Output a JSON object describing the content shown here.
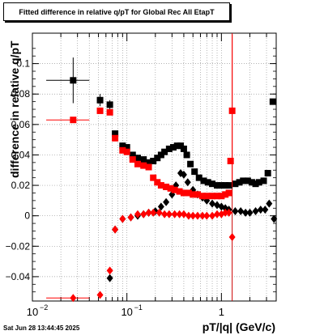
{
  "chart_data": {
    "type": "scatter",
    "title": "Fitted difference in relative q/pT for Global Rec All EtapT",
    "xlabel": "pT/|q| (GeV/c)",
    "ylabel": "difference in relative q/pT",
    "xscale": "log",
    "xlim": [
      0.01,
      3.8
    ],
    "ylim": [
      -0.056,
      0.12
    ],
    "x_ticks": [
      0.01,
      0.1,
      1
    ],
    "x_tick_labels": [
      "10",
      "10",
      "1"
    ],
    "x_tick_exponents": [
      "−2",
      "−1",
      ""
    ],
    "y_ticks": [
      -0.04,
      -0.02,
      0,
      0.02,
      0.04,
      0.06,
      0.08,
      0.1
    ],
    "y_tick_labels": [
      "−0.04",
      "−0.02",
      "0",
      "0.02",
      "0.04",
      "0.06",
      "0.08",
      "0.1"
    ],
    "grid": true,
    "vertical_line_x": 1.3,
    "series": [
      {
        "color": "#000000",
        "marker": "square",
        "points": [
          {
            "x": 0.027,
            "y": 0.089,
            "xerr": 0.013,
            "yerr": 0.015
          },
          {
            "x": 0.052,
            "y": 0.076,
            "xerr": 0.004,
            "yerr": 0.004
          },
          {
            "x": 0.066,
            "y": 0.073,
            "xerr": 0.003,
            "yerr": 0.003
          },
          {
            "x": 0.075,
            "y": 0.054
          },
          {
            "x": 0.09,
            "y": 0.046
          },
          {
            "x": 0.1,
            "y": 0.045
          },
          {
            "x": 0.115,
            "y": 0.04
          },
          {
            "x": 0.13,
            "y": 0.038
          },
          {
            "x": 0.15,
            "y": 0.037
          },
          {
            "x": 0.17,
            "y": 0.035
          },
          {
            "x": 0.19,
            "y": 0.036
          },
          {
            "x": 0.21,
            "y": 0.038
          },
          {
            "x": 0.23,
            "y": 0.04
          },
          {
            "x": 0.25,
            "y": 0.042
          },
          {
            "x": 0.28,
            "y": 0.044
          },
          {
            "x": 0.31,
            "y": 0.045
          },
          {
            "x": 0.34,
            "y": 0.046
          },
          {
            "x": 0.37,
            "y": 0.046
          },
          {
            "x": 0.4,
            "y": 0.044
          },
          {
            "x": 0.43,
            "y": 0.04
          },
          {
            "x": 0.47,
            "y": 0.034
          },
          {
            "x": 0.52,
            "y": 0.029
          },
          {
            "x": 0.58,
            "y": 0.025
          },
          {
            "x": 0.65,
            "y": 0.023
          },
          {
            "x": 0.72,
            "y": 0.022
          },
          {
            "x": 0.8,
            "y": 0.021
          },
          {
            "x": 0.9,
            "y": 0.02
          },
          {
            "x": 1.0,
            "y": 0.02
          },
          {
            "x": 1.1,
            "y": 0.02
          },
          {
            "x": 1.2,
            "y": 0.02
          },
          {
            "x": 1.4,
            "y": 0.021
          },
          {
            "x": 1.55,
            "y": 0.022
          },
          {
            "x": 1.7,
            "y": 0.023
          },
          {
            "x": 1.9,
            "y": 0.023
          },
          {
            "x": 2.1,
            "y": 0.022
          },
          {
            "x": 2.3,
            "y": 0.021
          },
          {
            "x": 2.5,
            "y": 0.022
          },
          {
            "x": 2.8,
            "y": 0.023
          },
          {
            "x": 3.1,
            "y": 0.028
          },
          {
            "x": 3.5,
            "y": 0.075
          }
        ]
      },
      {
        "color": "#000000",
        "marker": "diamond",
        "points": [
          {
            "x": 0.066,
            "y": -0.041
          },
          {
            "x": 0.075,
            "y": -0.009
          },
          {
            "x": 0.09,
            "y": -0.002
          },
          {
            "x": 0.11,
            "y": -0.001
          },
          {
            "x": 0.13,
            "y": 0.0
          },
          {
            "x": 0.15,
            "y": 0.001
          },
          {
            "x": 0.17,
            "y": 0.002
          },
          {
            "x": 0.2,
            "y": 0.003
          },
          {
            "x": 0.23,
            "y": 0.006
          },
          {
            "x": 0.26,
            "y": 0.009
          },
          {
            "x": 0.3,
            "y": 0.014
          },
          {
            "x": 0.33,
            "y": 0.02
          },
          {
            "x": 0.37,
            "y": 0.028
          },
          {
            "x": 0.4,
            "y": 0.027
          },
          {
            "x": 0.44,
            "y": 0.022
          },
          {
            "x": 0.5,
            "y": 0.017
          },
          {
            "x": 0.56,
            "y": 0.014
          },
          {
            "x": 0.63,
            "y": 0.012
          },
          {
            "x": 0.7,
            "y": 0.01
          },
          {
            "x": 0.8,
            "y": 0.008
          },
          {
            "x": 0.9,
            "y": 0.007
          },
          {
            "x": 1.0,
            "y": 0.006
          },
          {
            "x": 1.1,
            "y": 0.005
          },
          {
            "x": 1.2,
            "y": 0.004
          },
          {
            "x": 1.4,
            "y": 0.003
          },
          {
            "x": 1.6,
            "y": 0.003
          },
          {
            "x": 1.8,
            "y": 0.002
          },
          {
            "x": 2.0,
            "y": 0.002
          },
          {
            "x": 2.3,
            "y": 0.003
          },
          {
            "x": 2.6,
            "y": 0.004
          },
          {
            "x": 2.9,
            "y": 0.004
          },
          {
            "x": 3.2,
            "y": 0.008
          },
          {
            "x": 3.6,
            "y": -0.002
          }
        ]
      },
      {
        "color": "#ff0000",
        "marker": "square",
        "points": [
          {
            "x": 0.027,
            "y": 0.063,
            "xerr": 0.013,
            "yerr": 0.002
          },
          {
            "x": 0.052,
            "y": 0.069
          },
          {
            "x": 0.066,
            "y": 0.068
          },
          {
            "x": 0.075,
            "y": 0.051
          },
          {
            "x": 0.09,
            "y": 0.043
          },
          {
            "x": 0.1,
            "y": 0.042
          },
          {
            "x": 0.115,
            "y": 0.037
          },
          {
            "x": 0.13,
            "y": 0.034
          },
          {
            "x": 0.15,
            "y": 0.033
          },
          {
            "x": 0.17,
            "y": 0.032
          },
          {
            "x": 0.19,
            "y": 0.025
          },
          {
            "x": 0.21,
            "y": 0.022
          },
          {
            "x": 0.23,
            "y": 0.02
          },
          {
            "x": 0.26,
            "y": 0.019
          },
          {
            "x": 0.29,
            "y": 0.018
          },
          {
            "x": 0.32,
            "y": 0.017
          },
          {
            "x": 0.36,
            "y": 0.016
          },
          {
            "x": 0.4,
            "y": 0.015
          },
          {
            "x": 0.45,
            "y": 0.015
          },
          {
            "x": 0.5,
            "y": 0.014
          },
          {
            "x": 0.56,
            "y": 0.014
          },
          {
            "x": 0.63,
            "y": 0.013
          },
          {
            "x": 0.7,
            "y": 0.013
          },
          {
            "x": 0.8,
            "y": 0.013
          },
          {
            "x": 0.9,
            "y": 0.013
          },
          {
            "x": 1.0,
            "y": 0.013
          },
          {
            "x": 1.1,
            "y": 0.014
          },
          {
            "x": 1.2,
            "y": 0.015
          },
          {
            "x": 1.25,
            "y": 0.036
          },
          {
            "x": 1.3,
            "y": 0.069,
            "yerr": 0.05
          }
        ]
      },
      {
        "color": "#ff0000",
        "marker": "diamond",
        "points": [
          {
            "x": 0.027,
            "y": -0.054,
            "xerr": 0.013
          },
          {
            "x": 0.052,
            "y": -0.052
          },
          {
            "x": 0.066,
            "y": -0.036
          },
          {
            "x": 0.075,
            "y": -0.009
          },
          {
            "x": 0.09,
            "y": -0.002
          },
          {
            "x": 0.11,
            "y": -0.001
          },
          {
            "x": 0.13,
            "y": 0.001
          },
          {
            "x": 0.15,
            "y": 0.001
          },
          {
            "x": 0.17,
            "y": 0.002
          },
          {
            "x": 0.19,
            "y": 0.002
          },
          {
            "x": 0.22,
            "y": 0.002
          },
          {
            "x": 0.25,
            "y": 0.001
          },
          {
            "x": 0.28,
            "y": 0.001
          },
          {
            "x": 0.32,
            "y": 0.001
          },
          {
            "x": 0.36,
            "y": 0.001
          },
          {
            "x": 0.4,
            "y": 0.001
          },
          {
            "x": 0.45,
            "y": 0.0
          },
          {
            "x": 0.5,
            "y": 0.0
          },
          {
            "x": 0.56,
            "y": 0.0
          },
          {
            "x": 0.63,
            "y": 0.0
          },
          {
            "x": 0.7,
            "y": 0.0
          },
          {
            "x": 0.8,
            "y": 0.0
          },
          {
            "x": 0.9,
            "y": 0.001
          },
          {
            "x": 1.0,
            "y": 0.001
          },
          {
            "x": 1.1,
            "y": 0.002
          },
          {
            "x": 1.2,
            "y": 0.002
          },
          {
            "x": 1.3,
            "y": -0.014
          }
        ]
      }
    ]
  },
  "datestamp": "Sat Jun 28 13:44:45 2025",
  "colors": {
    "vertical_line": "#cc0000"
  }
}
